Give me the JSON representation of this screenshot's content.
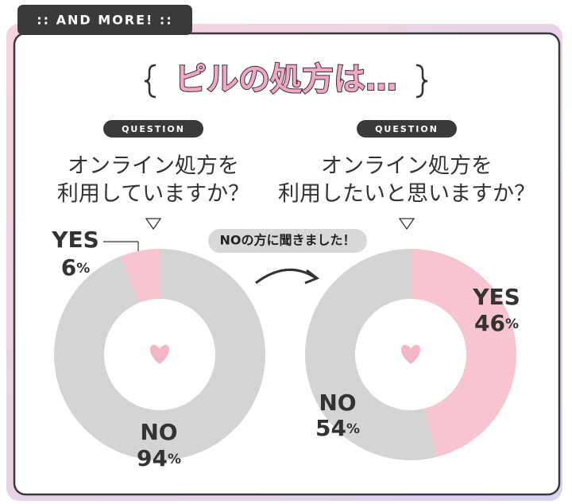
{
  "header": {
    "tab": ":: AND MORE! ::",
    "title": "ピルの処方は…",
    "note": "NOの方に聞きました！"
  },
  "chart_data": [
    {
      "type": "donut",
      "badge": "QUESTION",
      "title_lines": [
        "オンライン処方を",
        "利用していますか？"
      ],
      "categories": [
        "NO",
        "YES"
      ],
      "values": [
        94,
        6
      ],
      "value_labels": [
        "94%",
        "6%"
      ],
      "colors": [
        "#d4d4d4",
        "#f6c5d0"
      ]
    },
    {
      "type": "donut",
      "badge": "QUESTION",
      "title_lines": [
        "オンライン処方を",
        "利用したいと思いますか？"
      ],
      "categories": [
        "YES",
        "NO"
      ],
      "values": [
        46,
        54
      ],
      "value_labels": [
        "46%",
        "54%"
      ],
      "colors": [
        "#f6c5d0",
        "#d4d4d4"
      ]
    }
  ]
}
